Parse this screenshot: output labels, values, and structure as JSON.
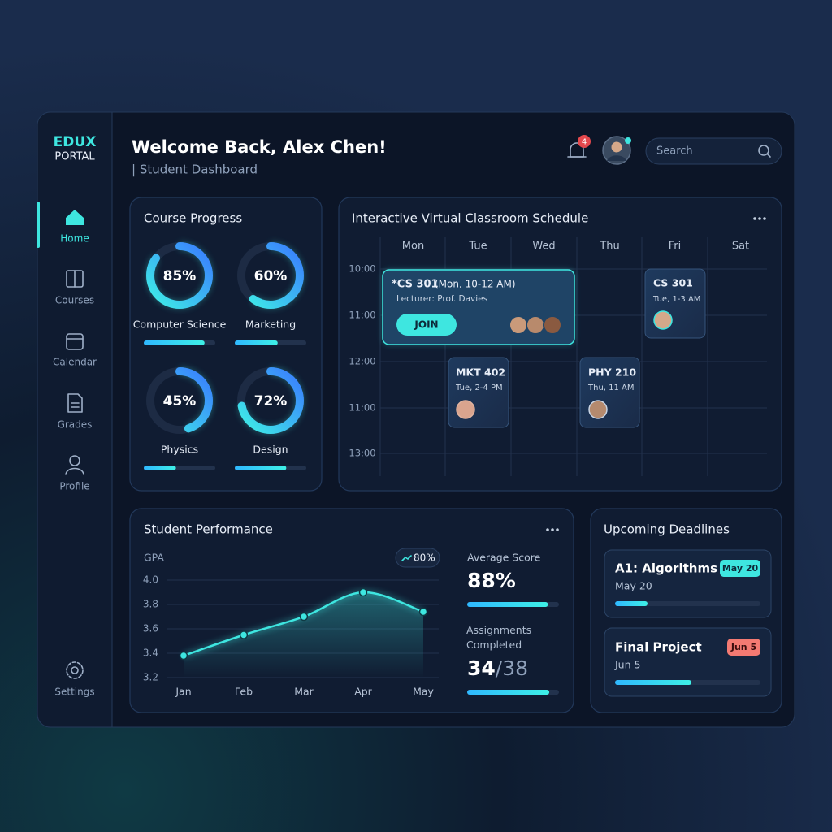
{
  "sidebar": {
    "brand": "EDUX",
    "brand_sub": "PORTAL",
    "nav": [
      "Home",
      "Courses",
      "Calendar",
      "Grades",
      "Profile"
    ],
    "settings": "Settings"
  },
  "header": {
    "title": "Welcome Back, Alex Chen!",
    "subtitle": "| Student Dashboard",
    "notifications": 4,
    "search_placeholder": "Search"
  },
  "course_progress": {
    "title": "Course Progress",
    "categories": [
      "Computer Science",
      "Marketing",
      "Physics",
      "Design"
    ],
    "values": [
      85,
      60,
      45,
      72
    ],
    "value_labels": [
      "85%",
      "60%",
      "45%",
      "72%"
    ]
  },
  "schedule": {
    "title": "Interactive Virtual Classroom Schedule",
    "days": [
      "Mon",
      "Tue",
      "Wed",
      "Thu",
      "Fri",
      "Sat"
    ],
    "times": [
      "10:00",
      "11:00",
      "12:00",
      "11:00",
      "13:00"
    ],
    "events": [
      {
        "title": "*CS 301",
        "time": "(Mon, 10-12 AM)",
        "lecturer": "Lecturer: Prof. Davies",
        "action": "JOIN"
      },
      {
        "title": "CS 301",
        "time": "Tue, 1-3 AM"
      },
      {
        "title": "MKT 402",
        "time": "Tue, 2-4 PM"
      },
      {
        "title": "PHY 210",
        "time": "Thu, 11 AM"
      }
    ]
  },
  "chart_data": {
    "type": "line",
    "title": "Student Performance",
    "y_label": "GPA",
    "badge": "80%",
    "categories": [
      "Jan",
      "Feb",
      "Mar",
      "Apr",
      "May"
    ],
    "values": [
      3.38,
      3.55,
      3.7,
      3.9,
      3.74
    ],
    "ylim": [
      3.2,
      4.0
    ],
    "yticks": [
      3.2,
      3.4,
      3.6,
      3.8,
      {
        "value": 4,
        "label": "4.0"
      }
    ],
    "grid": true,
    "color": "#3ee6e0"
  },
  "stats": {
    "average_score": {
      "label": "Average Score",
      "value": 88,
      "value_label": "88%"
    },
    "assignments": {
      "label": "Assignments Completed",
      "completed": 34,
      "total": 38,
      "total_label": "/38"
    }
  },
  "deadlines": {
    "title": "Upcoming Deadlines",
    "items": [
      {
        "title": "A1: Algorithms",
        "tag": "May 20",
        "date": "May 20"
      },
      {
        "title": "Final Project",
        "tag": "Jun 5",
        "date": "Jun 5"
      }
    ]
  }
}
